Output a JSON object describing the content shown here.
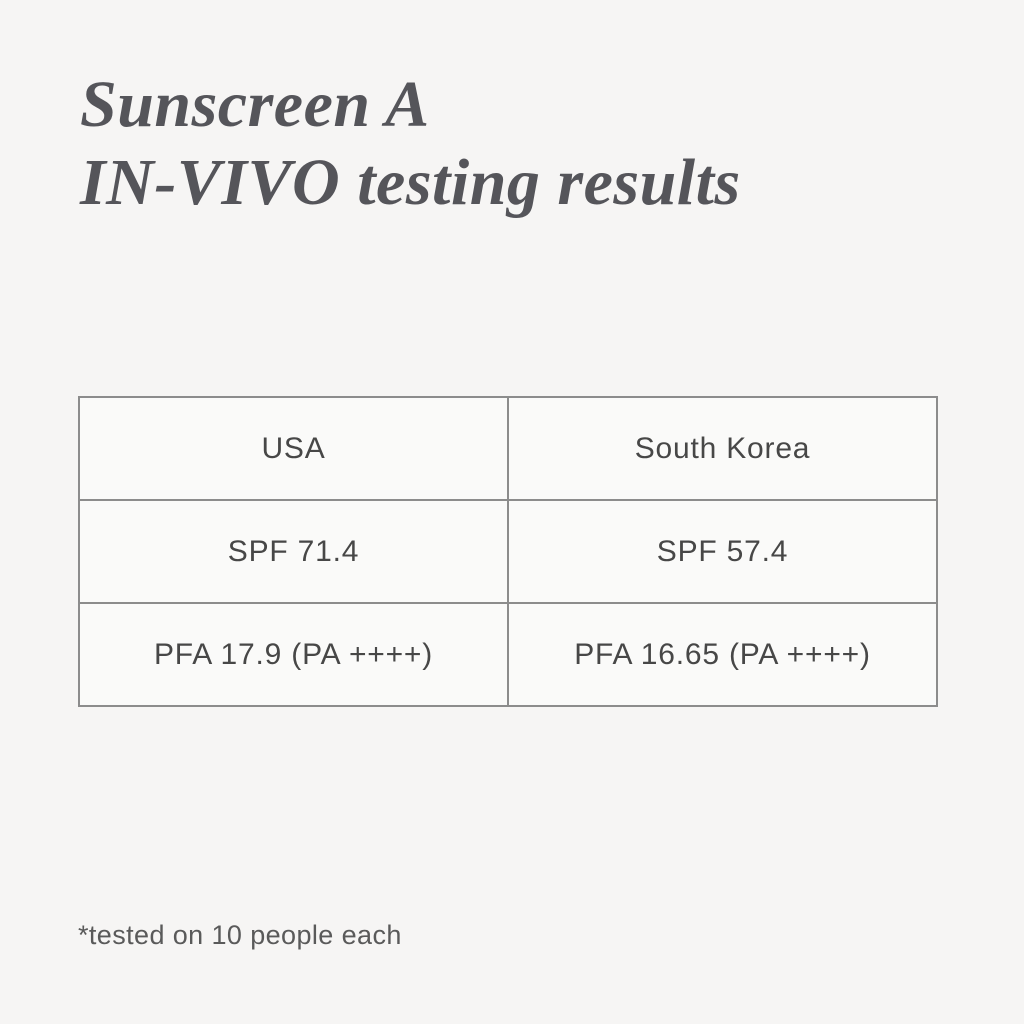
{
  "page": {
    "background_color": "#f6f5f4",
    "title_color": "#55555a",
    "title_line1": "Sunscreen A",
    "title_line2": "IN-VIVO testing results"
  },
  "table": {
    "border_color": "#8c8c8c",
    "cell_background": "#fafaf9",
    "text_color": "#474747",
    "columns": [
      "USA",
      "South Korea"
    ],
    "rows": [
      [
        "SPF 71.4",
        "SPF 57.4"
      ],
      [
        "PFA 17.9 (PA ++++)",
        "PFA 16.65 (PA ++++)"
      ]
    ]
  },
  "footnote": {
    "text": "*tested on 10 people each",
    "color": "#5a5a5a"
  }
}
